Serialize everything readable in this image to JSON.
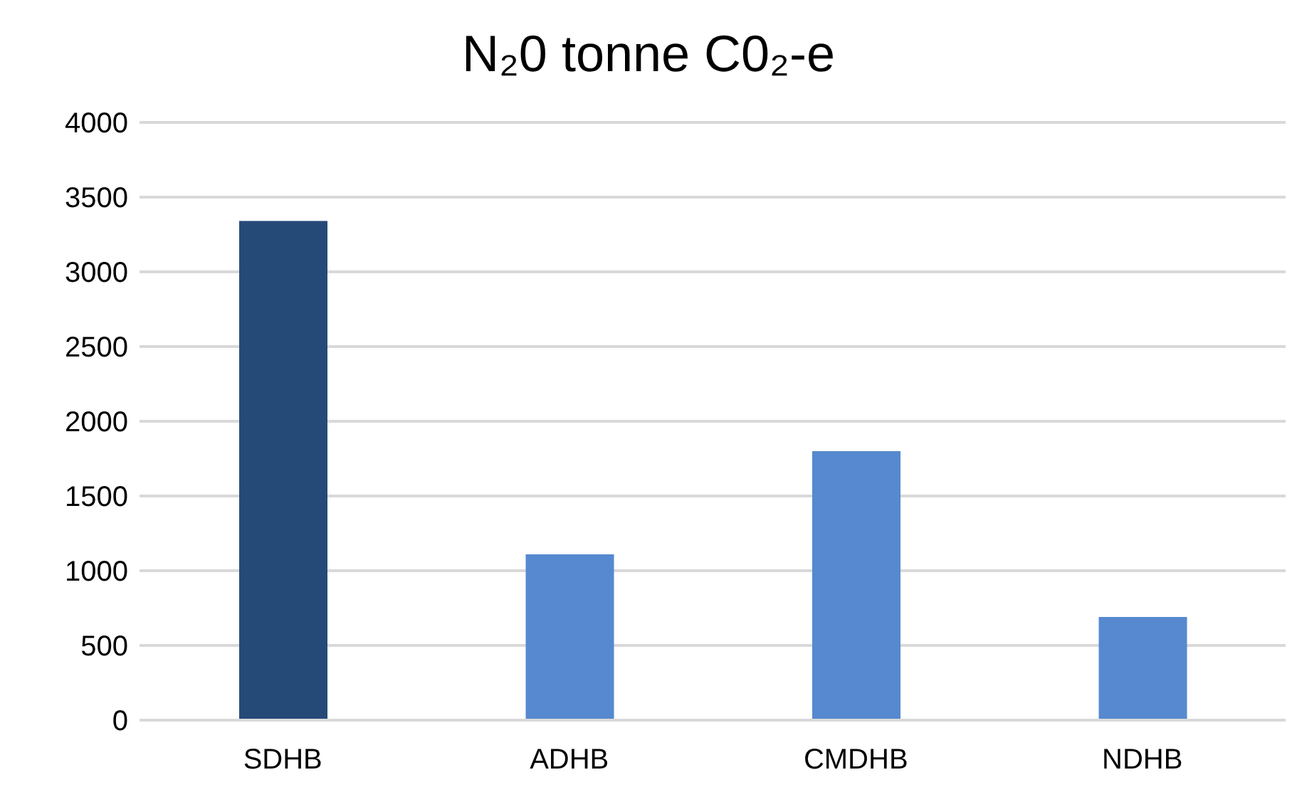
{
  "chart_data": {
    "type": "bar",
    "title": "N₂0 tonne C0₂-e",
    "categories": [
      "SDHB",
      "ADHB",
      "CMDHB",
      "NDHB"
    ],
    "values": [
      3340,
      1110,
      1800,
      690
    ],
    "colors": [
      "#264a78",
      "#5689cf",
      "#5689cf",
      "#5689cf"
    ],
    "ylim": [
      0,
      4000
    ],
    "yticks": [
      0,
      500,
      1000,
      1500,
      2000,
      2500,
      3000,
      3500,
      4000
    ],
    "grid": "y",
    "legend": false
  }
}
